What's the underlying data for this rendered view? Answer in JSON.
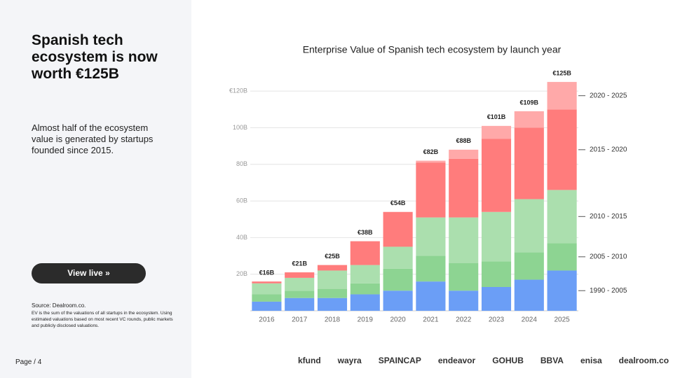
{
  "header": {
    "title": "Spanish tech ecosystem is now worth €125B",
    "subtitle": "Almost half of the ecosystem value is generated by startups founded since 2015.",
    "button": "View live »",
    "source": "Source:  Dealroom.co.",
    "note": "EV is the sum of the valuations of all startups in the ecosystem. Using estimated valuations based on most recent VC rounds, public markets and publicly disclosed valuations.",
    "page": "Page / 4"
  },
  "logos": [
    "kfund",
    "wayra",
    "SPAINCAP",
    "endeavor",
    "GOHUB",
    "BBVA",
    "enisa",
    "dealroom.co"
  ],
  "chart_data": {
    "type": "stacked_bar",
    "title": "Enterprise Value of Spanish tech ecosystem by launch year",
    "categories": [
      "2016",
      "2017",
      "2018",
      "2019",
      "2020",
      "2021",
      "2022",
      "2023",
      "2024",
      "2025"
    ],
    "series": [
      {
        "name": "1990 - 2005",
        "color": "#6b9ef6",
        "values": [
          5,
          7,
          7,
          9,
          11,
          16,
          11,
          13,
          17,
          22
        ]
      },
      {
        "name": "2005 - 2010",
        "color": "#8dd492",
        "values": [
          4,
          4,
          5,
          6,
          12,
          14,
          15,
          14,
          15,
          15
        ]
      },
      {
        "name": "2010 - 2015",
        "color": "#abdfae",
        "values": [
          6,
          7,
          10,
          10,
          12,
          21,
          25,
          27,
          29,
          29
        ]
      },
      {
        "name": "2015 - 2020",
        "color": "#ff7c7c",
        "values": [
          1,
          3,
          3,
          13,
          19,
          30,
          32,
          40,
          39,
          44
        ]
      },
      {
        "name": "2020 - 2025",
        "color": "#ffa9a9",
        "values": [
          0,
          0,
          0,
          0,
          0,
          1,
          5,
          7,
          9,
          15
        ]
      }
    ],
    "totals": {
      "values": [
        16,
        21,
        25,
        38,
        54,
        82,
        88,
        101,
        109,
        125
      ],
      "value_labels": [
        "€16B",
        "€21B",
        "€25B",
        "€38B",
        "€54B",
        "€82B",
        "€88B",
        "€101B",
        "€109B",
        "€125B"
      ]
    },
    "ylim": [
      0,
      130
    ],
    "yticks": [
      {
        "value": 20,
        "label": "20B"
      },
      {
        "value": 40,
        "label": "40B"
      },
      {
        "value": 60,
        "label": "60B"
      },
      {
        "value": 80,
        "label": "80B"
      },
      {
        "value": 100,
        "label": "100B"
      },
      {
        "value": 120,
        "label": "€120B"
      }
    ],
    "grid": true
  }
}
